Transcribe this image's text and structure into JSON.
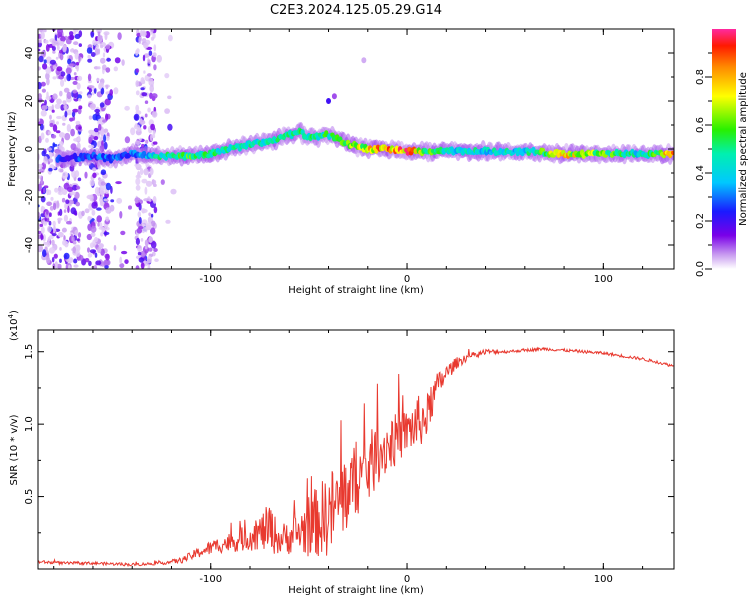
{
  "title": "C2E3.2024.125.05.29.G14",
  "chart_data": [
    {
      "type": "heatmap",
      "xlabel": "Height of straight line (km)",
      "ylabel": "Frequency (Hz)",
      "xlim": [
        -188,
        136
      ],
      "ylim": [
        -50,
        50
      ],
      "x_ticks": [
        -100,
        0,
        100
      ],
      "x_tick_labels": [
        "-100",
        "0",
        "100"
      ],
      "y_ticks": [
        -40,
        -20,
        0,
        20,
        40
      ],
      "y_tick_labels": [
        "-40",
        "-20",
        "0",
        "20",
        "40"
      ],
      "ridge": {
        "description_points_x": [
          -175,
          -160,
          -150,
          -140,
          -128,
          -120,
          -110,
          -100,
          -90,
          -80,
          -70,
          -60,
          -55,
          -50,
          -45,
          -40,
          -35,
          -30,
          -25,
          -20,
          -10,
          0,
          10,
          20,
          40,
          60,
          80,
          100,
          120,
          136
        ],
        "frequency": [
          -4,
          -3,
          -4,
          -2,
          -3,
          -3,
          -3,
          -2,
          0,
          2,
          3,
          6,
          7,
          5,
          5,
          6,
          4,
          2,
          1,
          0,
          0,
          -1,
          -1,
          -1,
          -1,
          -1,
          -2,
          -2,
          -2,
          -2
        ],
        "amplitude": [
          0.25,
          0.3,
          0.3,
          0.3,
          0.45,
          0.55,
          0.6,
          0.5,
          0.5,
          0.5,
          0.5,
          0.55,
          0.5,
          0.5,
          0.5,
          0.55,
          0.6,
          0.7,
          0.7,
          0.8,
          0.85,
          0.9,
          0.6,
          0.45,
          0.45,
          0.45,
          0.75,
          0.6,
          0.45,
          0.85
        ]
      },
      "colorbar": {
        "label": "Normalized spectral amplitude",
        "range": [
          0,
          1
        ],
        "ticks": [
          0.0,
          0.2,
          0.4,
          0.6,
          0.8
        ],
        "tick_labels": [
          "0.0",
          "0.2",
          "0.4",
          "0.6",
          "0.8"
        ],
        "colormap": "rainbow (white → violet → blue → cyan → green → yellow → orange → red → magenta)"
      }
    },
    {
      "type": "line",
      "xlabel": "Height of straight line (km)",
      "ylabel": "SNR (10 * v/v)",
      "y_multiplier_label": "(x10",
      "y_multiplier_exp": "4",
      "y_multiplier_close": ")",
      "xlim": [
        -188,
        136
      ],
      "ylim": [
        0,
        1.65
      ],
      "x_ticks": [
        -100,
        0,
        100
      ],
      "x_tick_labels": [
        "-100",
        "0",
        "100"
      ],
      "y_ticks": [
        0.5,
        1.0,
        1.5
      ],
      "y_tick_labels": [
        "0.5",
        "1.0",
        "1.5"
      ],
      "color": "#e8392f",
      "series": [
        {
          "x": [
            -188,
            -175,
            -160,
            -140,
            -125,
            -115,
            -105,
            -95,
            -85,
            -75,
            -70,
            -65,
            -55,
            -50,
            -45,
            -40,
            -35,
            -30,
            -25,
            -20,
            -15,
            -10,
            -5,
            0,
            5,
            10,
            15,
            20,
            25,
            30,
            35,
            40,
            50,
            60,
            70,
            80,
            90,
            100,
            110,
            120,
            130,
            136
          ],
          "y": [
            0.05,
            0.04,
            0.04,
            0.03,
            0.04,
            0.06,
            0.12,
            0.17,
            0.2,
            0.25,
            0.28,
            0.2,
            0.25,
            0.3,
            0.33,
            0.38,
            0.45,
            0.55,
            0.62,
            0.68,
            0.8,
            0.85,
            0.9,
            0.95,
            1.0,
            1.05,
            1.25,
            1.35,
            1.42,
            1.46,
            1.48,
            1.5,
            1.5,
            1.51,
            1.52,
            1.51,
            1.5,
            1.49,
            1.47,
            1.45,
            1.42,
            1.4
          ],
          "noise": [
            0.01,
            0.01,
            0.01,
            0.01,
            0.01,
            0.02,
            0.04,
            0.06,
            0.08,
            0.12,
            0.18,
            0.1,
            0.15,
            0.22,
            0.25,
            0.3,
            0.3,
            0.28,
            0.25,
            0.25,
            0.22,
            0.2,
            0.18,
            0.15,
            0.2,
            0.15,
            0.1,
            0.06,
            0.04,
            0.03,
            0.02,
            0.02,
            0.01,
            0.01,
            0.01,
            0.01,
            0.01,
            0.01,
            0.01,
            0.01,
            0.01,
            0.01
          ]
        }
      ]
    }
  ]
}
